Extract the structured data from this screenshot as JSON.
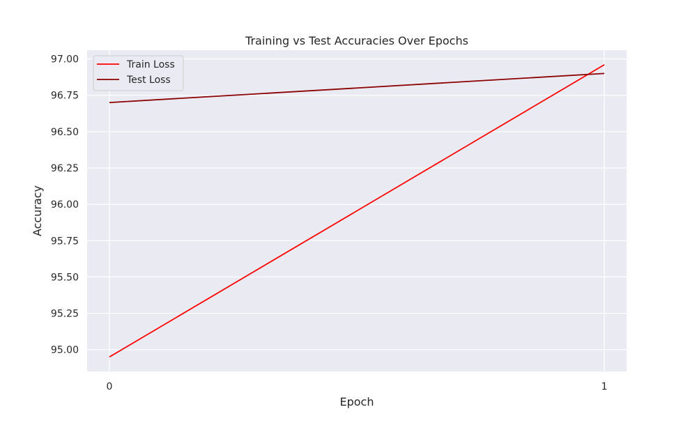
{
  "chart_data": {
    "type": "line",
    "title": "Training vs Test Accuracies Over Epochs",
    "xlabel": "Epoch",
    "ylabel": "Accuracy",
    "x": [
      0,
      1
    ],
    "x_tick_labels": [
      "0",
      "1"
    ],
    "xlim": [
      -0.045,
      1.045
    ],
    "ylim": [
      94.85,
      97.06
    ],
    "y_ticks": [
      95.0,
      95.25,
      95.5,
      95.75,
      96.0,
      96.25,
      96.5,
      96.75,
      97.0
    ],
    "y_tick_labels": [
      "95.00",
      "95.25",
      "95.50",
      "95.75",
      "96.00",
      "96.25",
      "96.50",
      "96.75",
      "97.00"
    ],
    "grid": true,
    "legend_position": "top-left",
    "background_color": "#eaeaf2",
    "series": [
      {
        "name": "Train Loss",
        "values": [
          94.95,
          96.96
        ],
        "color": "#ff0000"
      },
      {
        "name": "Test Loss",
        "values": [
          96.7,
          96.9
        ],
        "color": "#8b0000"
      }
    ]
  }
}
